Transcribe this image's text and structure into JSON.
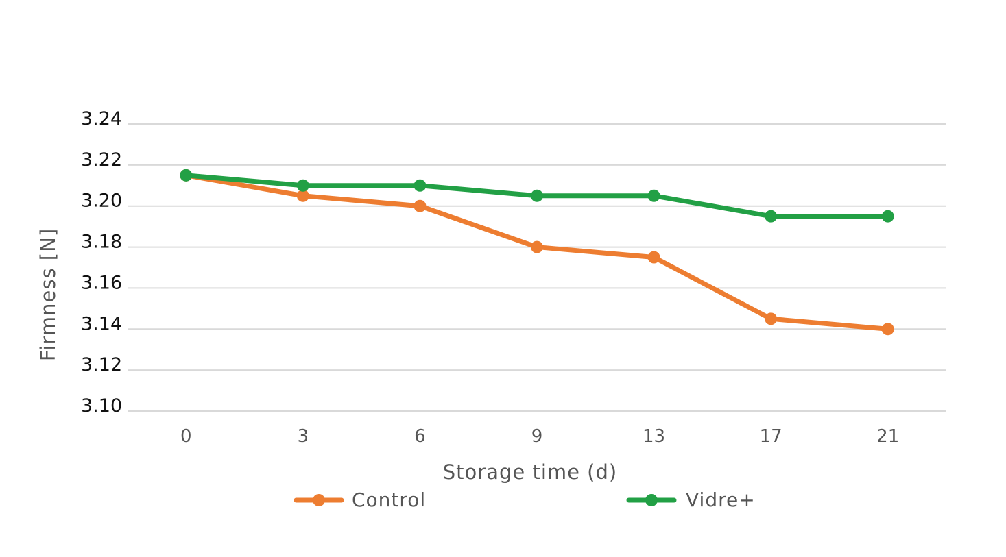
{
  "chart_data": {
    "type": "line",
    "title": "",
    "xlabel": "Storage time (d)",
    "ylabel": "Firmness [N]",
    "categories": [
      "0",
      "3",
      "6",
      "9",
      "13",
      "17",
      "21"
    ],
    "ylim": [
      3.1,
      3.24
    ],
    "yticks": [
      "3.24",
      "3.22",
      "3.20",
      "3.18",
      "3.16",
      "3.14",
      "3.12",
      "3.10"
    ],
    "grid": true,
    "legend_position": "bottom",
    "series": [
      {
        "name": "Control",
        "color": "#ED7D31",
        "values": [
          3.215,
          3.205,
          3.2,
          3.18,
          3.175,
          3.145,
          3.14
        ]
      },
      {
        "name": "Vidre+",
        "color": "#22A045",
        "values": [
          3.215,
          3.21,
          3.21,
          3.205,
          3.205,
          3.195,
          3.195
        ]
      }
    ]
  }
}
